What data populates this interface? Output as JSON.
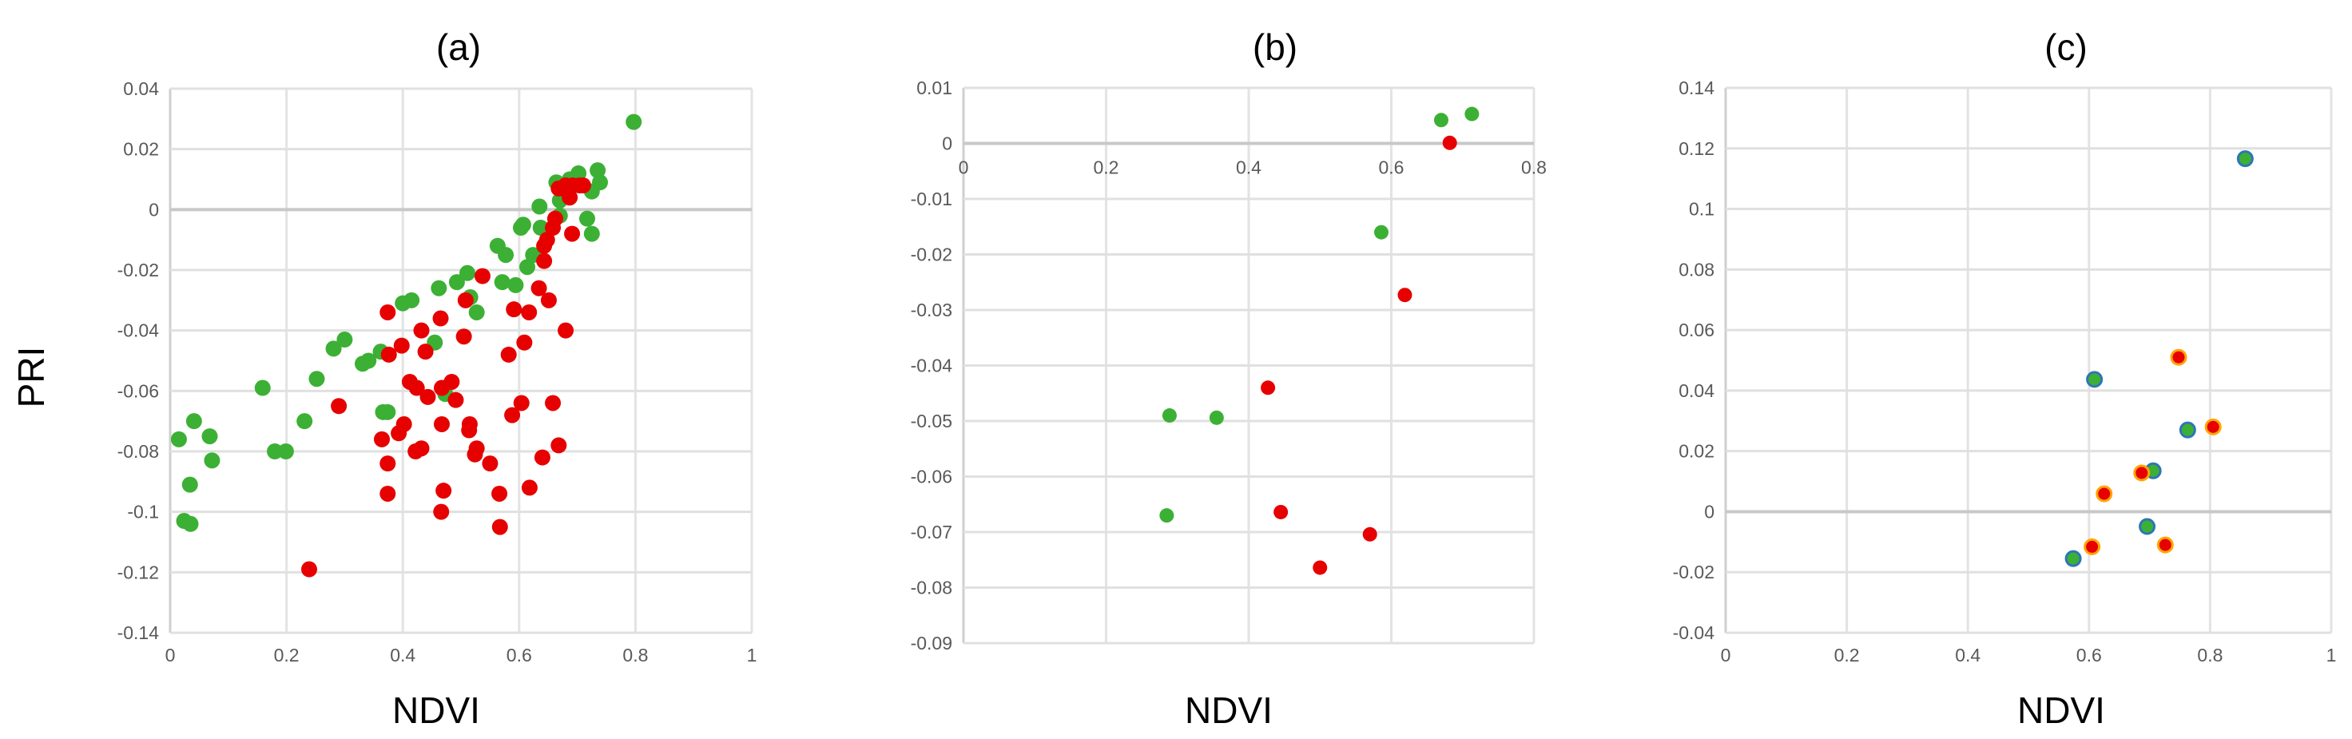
{
  "chart_data": [
    {
      "type": "scatter",
      "title": "(a)",
      "xlabel": "NDVI",
      "ylabel": "PRI",
      "xlim": [
        0,
        1
      ],
      "ylim": [
        -0.14,
        0.04
      ],
      "xticks": [
        "0",
        "0.2",
        "0.4",
        "0.6",
        "0.8",
        "1"
      ],
      "yticks": [
        "0.04",
        "0.02",
        "0",
        "-0.02",
        "-0.04",
        "-0.06",
        "-0.08",
        "-0.1",
        "-0.12",
        "-0.14"
      ],
      "grid": true,
      "series": [
        {
          "color": "#3cb034",
          "points": [
            [
              0.797,
              0.029
            ],
            [
              0.735,
              0.013
            ],
            [
              0.739,
              0.009
            ],
            [
              0.725,
              0.006
            ],
            [
              0.702,
              0.012
            ],
            [
              0.687,
              0.01
            ],
            [
              0.664,
              0.009
            ],
            [
              0.67,
              0.003
            ],
            [
              0.635,
              0.001
            ],
            [
              0.717,
              -0.003
            ],
            [
              0.725,
              -0.008
            ],
            [
              0.607,
              -0.005
            ],
            [
              0.603,
              -0.006
            ],
            [
              0.637,
              -0.006
            ],
            [
              0.67,
              -0.002
            ],
            [
              0.563,
              -0.012
            ],
            [
              0.577,
              -0.015
            ],
            [
              0.624,
              -0.015
            ],
            [
              0.614,
              -0.019
            ],
            [
              0.511,
              -0.021
            ],
            [
              0.493,
              -0.024
            ],
            [
              0.462,
              -0.026
            ],
            [
              0.571,
              -0.024
            ],
            [
              0.594,
              -0.025
            ],
            [
              0.516,
              -0.029
            ],
            [
              0.527,
              -0.034
            ],
            [
              0.4,
              -0.031
            ],
            [
              0.415,
              -0.03
            ],
            [
              0.455,
              -0.044
            ],
            [
              0.3,
              -0.043
            ],
            [
              0.281,
              -0.046
            ],
            [
              0.331,
              -0.051
            ],
            [
              0.341,
              -0.05
            ],
            [
              0.362,
              -0.047
            ],
            [
              0.252,
              -0.056
            ],
            [
              0.159,
              -0.059
            ],
            [
              0.231,
              -0.07
            ],
            [
              0.366,
              -0.067
            ],
            [
              0.374,
              -0.067
            ],
            [
              0.473,
              -0.061
            ],
            [
              0.18,
              -0.08
            ],
            [
              0.199,
              -0.08
            ],
            [
              0.015,
              -0.076
            ],
            [
              0.041,
              -0.07
            ],
            [
              0.068,
              -0.075
            ],
            [
              0.072,
              -0.083
            ],
            [
              0.034,
              -0.091
            ],
            [
              0.024,
              -0.103
            ],
            [
              0.035,
              -0.104
            ]
          ]
        },
        {
          "color": "#e60000",
          "points": [
            [
              0.668,
              0.007
            ],
            [
              0.68,
              0.008
            ],
            [
              0.692,
              0.008
            ],
            [
              0.704,
              0.008
            ],
            [
              0.71,
              0.008
            ],
            [
              0.685,
              0.006
            ],
            [
              0.675,
              0.007
            ],
            [
              0.687,
              0.004
            ],
            [
              0.691,
              -0.008
            ],
            [
              0.662,
              -0.003
            ],
            [
              0.658,
              -0.006
            ],
            [
              0.648,
              -0.01
            ],
            [
              0.643,
              -0.012
            ],
            [
              0.643,
              -0.017
            ],
            [
              0.537,
              -0.022
            ],
            [
              0.634,
              -0.026
            ],
            [
              0.651,
              -0.03
            ],
            [
              0.508,
              -0.03
            ],
            [
              0.591,
              -0.033
            ],
            [
              0.617,
              -0.034
            ],
            [
              0.465,
              -0.036
            ],
            [
              0.374,
              -0.034
            ],
            [
              0.432,
              -0.04
            ],
            [
              0.505,
              -0.042
            ],
            [
              0.68,
              -0.04
            ],
            [
              0.609,
              -0.044
            ],
            [
              0.398,
              -0.045
            ],
            [
              0.376,
              -0.048
            ],
            [
              0.439,
              -0.047
            ],
            [
              0.582,
              -0.048
            ],
            [
              0.412,
              -0.057
            ],
            [
              0.424,
              -0.059
            ],
            [
              0.443,
              -0.062
            ],
            [
              0.484,
              -0.057
            ],
            [
              0.467,
              -0.059
            ],
            [
              0.491,
              -0.063
            ],
            [
              0.29,
              -0.065
            ],
            [
              0.604,
              -0.064
            ],
            [
              0.658,
              -0.064
            ],
            [
              0.588,
              -0.068
            ],
            [
              0.467,
              -0.071
            ],
            [
              0.402,
              -0.071
            ],
            [
              0.393,
              -0.074
            ],
            [
              0.515,
              -0.071
            ],
            [
              0.514,
              -0.073
            ],
            [
              0.364,
              -0.076
            ],
            [
              0.432,
              -0.079
            ],
            [
              0.422,
              -0.08
            ],
            [
              0.527,
              -0.079
            ],
            [
              0.524,
              -0.081
            ],
            [
              0.668,
              -0.078
            ],
            [
              0.64,
              -0.082
            ],
            [
              0.55,
              -0.084
            ],
            [
              0.374,
              -0.084
            ],
            [
              0.374,
              -0.094
            ],
            [
              0.47,
              -0.093
            ],
            [
              0.566,
              -0.094
            ],
            [
              0.618,
              -0.092
            ],
            [
              0.466,
              -0.1
            ],
            [
              0.567,
              -0.105
            ],
            [
              0.239,
              -0.119
            ]
          ]
        }
      ]
    },
    {
      "type": "scatter",
      "title": "(b)",
      "xlabel": "NDVI",
      "ylabel": "",
      "xlim": [
        0,
        0.8
      ],
      "ylim": [
        -0.09,
        0.01
      ],
      "xticks": [
        "0",
        "0.2",
        "0.4",
        "0.6",
        "0.8"
      ],
      "yticks": [
        "0.01",
        "0",
        "-0.01",
        "-0.02",
        "-0.03",
        "-0.04",
        "-0.05",
        "-0.06",
        "-0.07",
        "-0.08",
        "-0.09"
      ],
      "grid": true,
      "series": [
        {
          "color": "#3cb034",
          "points": [
            [
              0.67,
              0.0042
            ],
            [
              0.713,
              0.0053
            ],
            [
              0.586,
              -0.016
            ],
            [
              0.289,
              -0.049
            ],
            [
              0.355,
              -0.0494
            ],
            [
              0.285,
              -0.067
            ]
          ]
        },
        {
          "color": "#e60000",
          "points": [
            [
              0.682,
              0.0001
            ],
            [
              0.619,
              -0.0273
            ],
            [
              0.427,
              -0.044
            ],
            [
              0.445,
              -0.0664
            ],
            [
              0.57,
              -0.0704
            ],
            [
              0.5,
              -0.0764
            ]
          ]
        }
      ]
    },
    {
      "type": "scatter",
      "title": "(c)",
      "xlabel": "NDVI",
      "ylabel": "",
      "xlim": [
        0,
        1
      ],
      "ylim": [
        -0.04,
        0.14
      ],
      "xticks": [
        "0",
        "0.2",
        "0.4",
        "0.6",
        "0.8",
        "1"
      ],
      "yticks": [
        "0.14",
        "0.12",
        "0.1",
        "0.08",
        "0.06",
        "0.04",
        "0.02",
        "0",
        "-0.02",
        "-0.04"
      ],
      "grid": true,
      "series": [
        {
          "color": "#3cb034",
          "edge_color": "#2e75b6",
          "points": [
            [
              0.858,
              0.1166
            ],
            [
              0.609,
              0.0437
            ],
            [
              0.763,
              0.027
            ],
            [
              0.706,
              0.0135
            ],
            [
              0.696,
              -0.0049
            ],
            [
              0.574,
              -0.0155
            ]
          ]
        },
        {
          "color": "#e60000",
          "edge_color": "#ffa500",
          "points": [
            [
              0.748,
              0.051
            ],
            [
              0.805,
              0.028
            ],
            [
              0.687,
              0.0128
            ],
            [
              0.625,
              0.0059
            ],
            [
              0.605,
              -0.0116
            ],
            [
              0.726,
              -0.011
            ]
          ]
        }
      ]
    }
  ]
}
